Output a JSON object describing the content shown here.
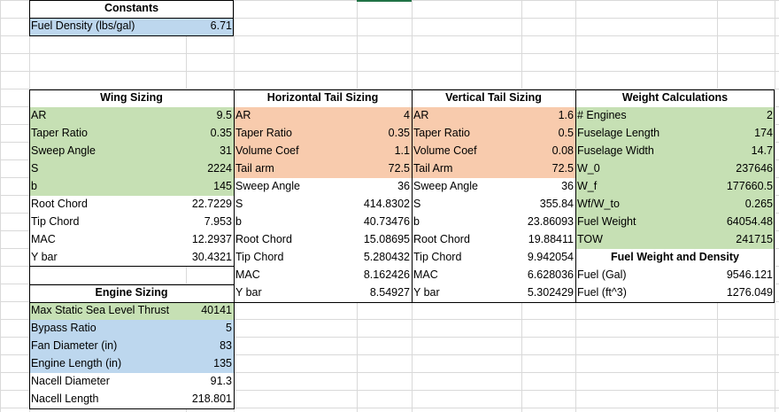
{
  "constants": {
    "title": "Constants",
    "fuel_density_label": "Fuel Density (lbs/gal)",
    "fuel_density_value": "6.71"
  },
  "wing": {
    "title": "Wing Sizing",
    "rows": [
      {
        "label": "AR",
        "value": "9.5"
      },
      {
        "label": "Taper Ratio",
        "value": "0.35"
      },
      {
        "label": "Sweep Angle",
        "value": "31"
      },
      {
        "label": "S",
        "value": "2224"
      },
      {
        "label": "b",
        "value": "145"
      },
      {
        "label": "Root Chord",
        "value": "22.7229"
      },
      {
        "label": "Tip Chord",
        "value": "7.953"
      },
      {
        "label": "MAC",
        "value": "12.2937"
      },
      {
        "label": "Y bar",
        "value": "30.4321"
      }
    ]
  },
  "htail": {
    "title": "Horizontal Tail Sizing",
    "rows": [
      {
        "label": "AR",
        "value": "4"
      },
      {
        "label": "Taper Ratio",
        "value": "0.35"
      },
      {
        "label": "Volume Coef",
        "value": "1.1"
      },
      {
        "label": "Tail arm",
        "value": "72.5"
      },
      {
        "label": "Sweep Angle",
        "value": "36"
      },
      {
        "label": "S",
        "value": "414.8302"
      },
      {
        "label": "b",
        "value": "40.73476"
      },
      {
        "label": "Root Chord",
        "value": "15.08695"
      },
      {
        "label": "Tip Chord",
        "value": "5.280432"
      },
      {
        "label": "MAC",
        "value": "8.162426"
      },
      {
        "label": "Y bar",
        "value": "8.54927"
      }
    ]
  },
  "vtail": {
    "title": "Vertical Tail Sizing",
    "rows": [
      {
        "label": "AR",
        "value": "1.6"
      },
      {
        "label": "Taper Ratio",
        "value": "0.5"
      },
      {
        "label": "Volume Coef",
        "value": "0.08"
      },
      {
        "label": "Tail Arm",
        "value": "72.5"
      },
      {
        "label": "Sweep Angle",
        "value": "36"
      },
      {
        "label": "S",
        "value": "355.84"
      },
      {
        "label": "b",
        "value": "23.86093"
      },
      {
        "label": "Root Chord",
        "value": "19.88411"
      },
      {
        "label": "Tip Chord",
        "value": "9.942054"
      },
      {
        "label": "MAC",
        "value": "6.628036"
      },
      {
        "label": "Y bar",
        "value": "5.302429"
      }
    ]
  },
  "weight": {
    "title": "Weight Calculations",
    "rows": [
      {
        "label": "# Engines",
        "value": "2"
      },
      {
        "label": "Fuselage Length",
        "value": "174"
      },
      {
        "label": "Fuselage Width",
        "value": "14.7"
      },
      {
        "label": "W_0",
        "value": "237646"
      },
      {
        "label": "W_f",
        "value": "177660.5"
      },
      {
        "label": "Wf/W_to",
        "value": "0.265"
      },
      {
        "label": "Fuel Weight",
        "value": "64054.48"
      },
      {
        "label": "TOW",
        "value": "241715"
      }
    ]
  },
  "fuel": {
    "title": "Fuel Weight and Density",
    "rows": [
      {
        "label": "Fuel (Gal)",
        "value": "9546.121"
      },
      {
        "label": "Fuel (ft^3)",
        "value": "1276.049"
      }
    ]
  },
  "engine": {
    "title": "Engine Sizing",
    "rows": [
      {
        "label": "Max Static Sea Level Thrust",
        "value": "40141"
      },
      {
        "label": "Bypass Ratio",
        "value": "5"
      },
      {
        "label": "Fan Diameter (in)",
        "value": "83"
      },
      {
        "label": "Engine Length (in)",
        "value": "135"
      },
      {
        "label": "Nacell Diameter",
        "value": "91.3"
      },
      {
        "label": "Nacell Length",
        "value": "218.801"
      }
    ]
  },
  "colors": {
    "input_green": "#c6e0b4",
    "input_blue": "#bdd7ee",
    "input_orange": "#f8cbad",
    "gridline": "#d9d9d9",
    "selection": "#217346"
  }
}
